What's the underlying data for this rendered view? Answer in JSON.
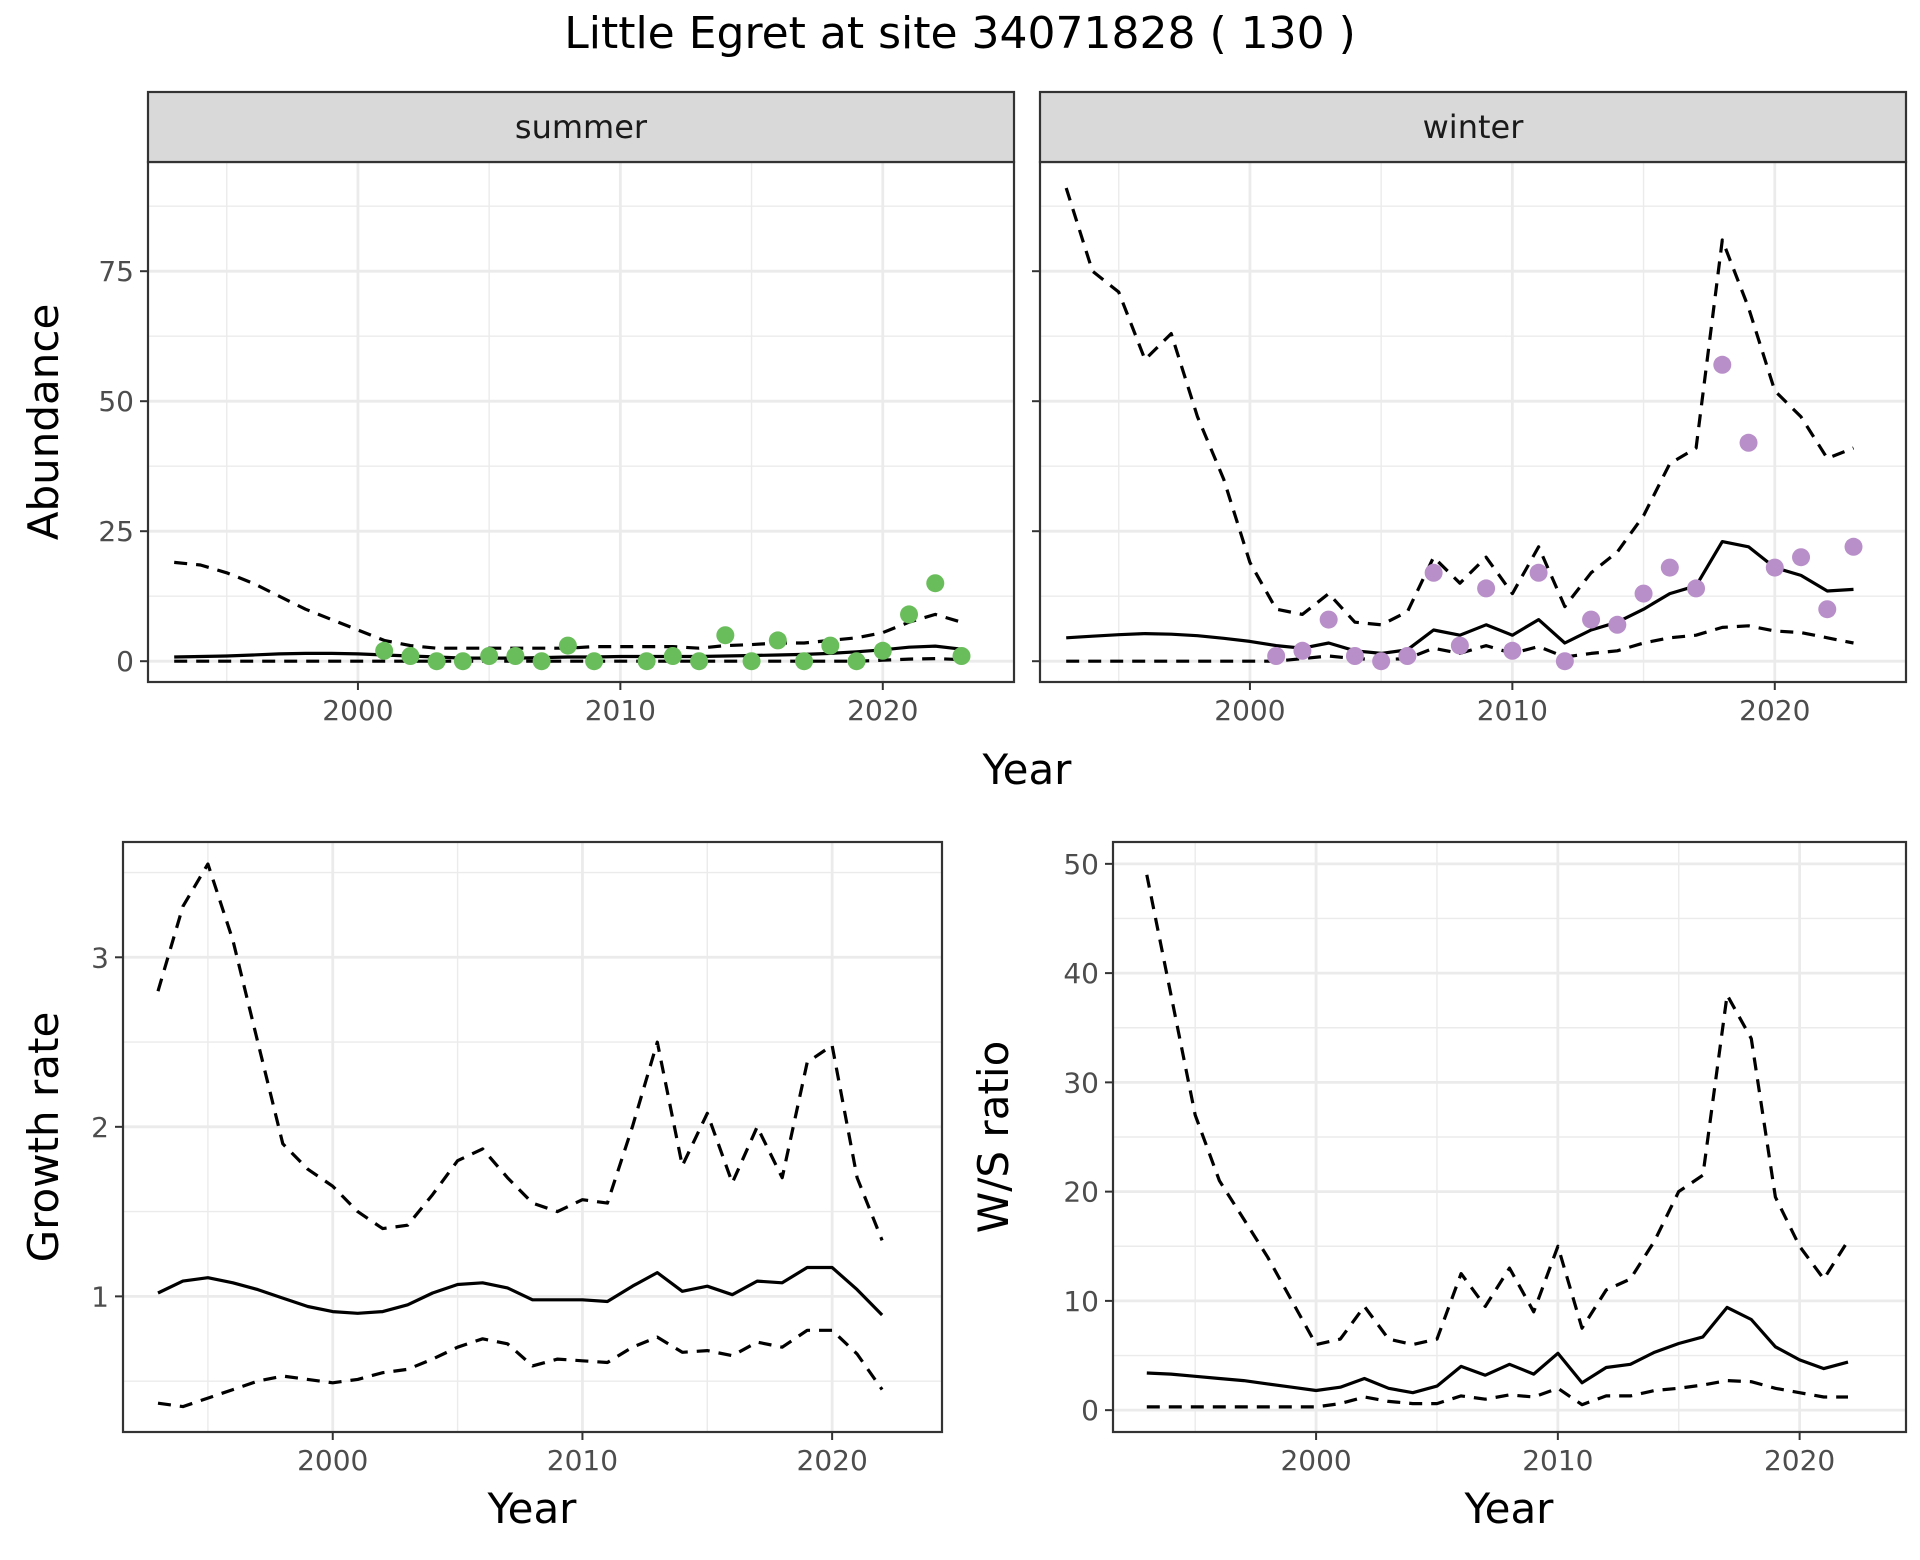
{
  "title": "Little Egret at site 34071828 ( 130 )",
  "colors": {
    "summer_points": "#6abd5b",
    "winter_points": "#b98fc9",
    "line": "#000000",
    "grid": "#ebebeb",
    "strip_bg": "#d9d9d9",
    "panel_border": "#333333"
  },
  "chart_data": [
    {
      "type": "line",
      "panel": "summer",
      "strip": "summer",
      "xlabel": "Year",
      "ylabel": "Abundance",
      "xlim": [
        1992,
        2025
      ],
      "ylim": [
        -4,
        96
      ],
      "xticks": [
        2000,
        2010,
        2020
      ],
      "yticks": [
        0,
        25,
        50,
        75
      ],
      "grid": true,
      "point_color": "#6abd5b",
      "x": [
        1993,
        1994,
        1995,
        1996,
        1997,
        1998,
        1999,
        2000,
        2001,
        2002,
        2003,
        2004,
        2005,
        2006,
        2007,
        2008,
        2009,
        2010,
        2011,
        2012,
        2013,
        2014,
        2015,
        2016,
        2017,
        2018,
        2019,
        2020,
        2021,
        2022,
        2023
      ],
      "series": [
        {
          "style": "solid",
          "values": [
            0.8,
            0.9,
            1.0,
            1.2,
            1.4,
            1.5,
            1.5,
            1.4,
            1.2,
            1.0,
            0.8,
            0.6,
            0.6,
            0.6,
            0.7,
            0.8,
            0.8,
            0.9,
            0.9,
            0.9,
            0.9,
            1.0,
            1.1,
            1.2,
            1.3,
            1.5,
            1.8,
            2.2,
            2.7,
            2.9,
            2.3
          ]
        },
        {
          "style": "dashed",
          "values": [
            19.0,
            18.5,
            17.0,
            15.0,
            12.5,
            10.0,
            8.0,
            6.0,
            4.0,
            3.0,
            2.5,
            2.5,
            2.5,
            2.5,
            2.5,
            2.5,
            2.8,
            2.8,
            2.8,
            2.8,
            2.5,
            3.0,
            3.2,
            3.5,
            3.5,
            4.0,
            4.5,
            5.5,
            7.5,
            9.0,
            7.5
          ]
        },
        {
          "style": "dashed",
          "values": [
            0,
            0,
            0,
            0,
            0,
            0,
            0,
            0,
            0,
            0,
            0,
            0,
            0,
            0,
            0,
            0,
            0,
            0,
            0,
            0,
            0,
            0,
            0,
            0,
            0,
            0,
            0,
            0.2,
            0.4,
            0.5,
            0.3
          ]
        }
      ],
      "points": {
        "x": [
          2001,
          2002,
          2003,
          2004,
          2005,
          2006,
          2007,
          2008,
          2009,
          2011,
          2012,
          2013,
          2014,
          2015,
          2016,
          2017,
          2018,
          2019,
          2020,
          2021,
          2022,
          2023
        ],
        "y": [
          2,
          1,
          0,
          0,
          1,
          1,
          0,
          3,
          0,
          0,
          1,
          0,
          5,
          0,
          4,
          0,
          3,
          0,
          2,
          9,
          15,
          1
        ]
      }
    },
    {
      "type": "line",
      "panel": "winter",
      "strip": "winter",
      "xlabel": "Year",
      "ylabel": "",
      "xlim": [
        1992,
        2025
      ],
      "ylim": [
        -4,
        96
      ],
      "xticks": [
        2000,
        2010,
        2020
      ],
      "yticks": [
        0,
        25,
        50,
        75
      ],
      "grid": true,
      "point_color": "#b98fc9",
      "x": [
        1993,
        1994,
        1995,
        1996,
        1997,
        1998,
        1999,
        2000,
        2001,
        2002,
        2003,
        2004,
        2005,
        2006,
        2007,
        2008,
        2009,
        2010,
        2011,
        2012,
        2013,
        2014,
        2015,
        2016,
        2017,
        2018,
        2019,
        2020,
        2021,
        2022,
        2023
      ],
      "series": [
        {
          "style": "solid",
          "values": [
            4.5,
            4.8,
            5.1,
            5.3,
            5.2,
            4.9,
            4.4,
            3.8,
            3.0,
            2.5,
            3.5,
            2.0,
            1.5,
            2.2,
            6.0,
            5.0,
            7.0,
            5.0,
            8.0,
            3.5,
            6.0,
            7.5,
            10.0,
            13.0,
            14.5,
            23.0,
            22.0,
            18.0,
            16.5,
            13.5,
            13.8
          ]
        },
        {
          "style": "dashed",
          "values": [
            91.0,
            75.0,
            71.0,
            58.0,
            63.0,
            47.0,
            35.0,
            19.0,
            10.0,
            9.0,
            13.0,
            7.5,
            7.0,
            9.5,
            20.0,
            15.0,
            20.0,
            13.0,
            22.0,
            10.5,
            17.0,
            21.0,
            28.0,
            38.0,
            41.0,
            81.0,
            68.0,
            52.0,
            47.0,
            39.0,
            41.0
          ]
        },
        {
          "style": "dashed",
          "values": [
            0,
            0,
            0,
            0,
            0,
            0,
            0,
            0,
            0,
            0.5,
            1.0,
            0.5,
            0.3,
            0.5,
            2.5,
            1.5,
            3.0,
            1.5,
            2.8,
            0.8,
            1.5,
            2.0,
            3.5,
            4.5,
            5.0,
            6.5,
            6.8,
            5.8,
            5.5,
            4.5,
            3.5
          ]
        }
      ],
      "points": {
        "x": [
          2001,
          2002,
          2003,
          2004,
          2005,
          2006,
          2007,
          2008,
          2009,
          2010,
          2011,
          2012,
          2013,
          2014,
          2015,
          2016,
          2017,
          2018,
          2019,
          2020,
          2021,
          2022,
          2023
        ],
        "y": [
          1,
          2,
          8,
          1,
          0,
          1,
          17,
          3,
          14,
          2,
          17,
          0,
          8,
          7,
          13,
          18,
          14,
          57,
          42,
          18,
          20,
          10,
          22
        ]
      }
    },
    {
      "type": "line",
      "panel": "growth",
      "xlabel": "Year",
      "ylabel": "Growth rate",
      "xlim": [
        1991.6,
        2024.4
      ],
      "ylim": [
        0.2,
        3.68
      ],
      "xticks": [
        2000,
        2010,
        2020
      ],
      "yticks": [
        1,
        2,
        3
      ],
      "grid": true,
      "x": [
        1993,
        1994,
        1995,
        1996,
        1997,
        1998,
        1999,
        2000,
        2001,
        2002,
        2003,
        2004,
        2005,
        2006,
        2007,
        2008,
        2009,
        2010,
        2011,
        2012,
        2013,
        2014,
        2015,
        2016,
        2017,
        2018,
        2019,
        2020,
        2021,
        2022
      ],
      "series": [
        {
          "style": "solid",
          "values": [
            1.02,
            1.09,
            1.11,
            1.08,
            1.04,
            0.99,
            0.94,
            0.91,
            0.9,
            0.91,
            0.95,
            1.02,
            1.07,
            1.08,
            1.05,
            0.98,
            0.98,
            0.98,
            0.97,
            1.06,
            1.14,
            1.03,
            1.06,
            1.01,
            1.09,
            1.08,
            1.17,
            1.17,
            1.04,
            0.89
          ]
        },
        {
          "style": "dashed",
          "values": [
            2.8,
            3.3,
            3.55,
            3.1,
            2.5,
            1.9,
            1.75,
            1.65,
            1.5,
            1.4,
            1.42,
            1.6,
            1.8,
            1.87,
            1.7,
            1.55,
            1.5,
            1.57,
            1.55,
            2.0,
            2.5,
            1.77,
            2.08,
            1.67,
            2.0,
            1.7,
            2.38,
            2.48,
            1.7,
            1.33
          ]
        },
        {
          "style": "dashed",
          "values": [
            0.37,
            0.35,
            0.4,
            0.45,
            0.5,
            0.53,
            0.51,
            0.49,
            0.51,
            0.55,
            0.57,
            0.63,
            0.7,
            0.75,
            0.72,
            0.59,
            0.63,
            0.62,
            0.61,
            0.7,
            0.76,
            0.67,
            0.68,
            0.65,
            0.73,
            0.7,
            0.8,
            0.8,
            0.66,
            0.45
          ]
        }
      ]
    },
    {
      "type": "line",
      "panel": "ratio",
      "xlabel": "Year",
      "ylabel": "W/S ratio",
      "xlim": [
        1991.6,
        2024.4
      ],
      "ylim": [
        -2,
        52
      ],
      "xticks": [
        2000,
        2010,
        2020
      ],
      "yticks": [
        0,
        10,
        20,
        30,
        40,
        50
      ],
      "grid": true,
      "x": [
        1993,
        1994,
        1995,
        1996,
        1997,
        1998,
        1999,
        2000,
        2001,
        2002,
        2003,
        2004,
        2005,
        2006,
        2007,
        2008,
        2009,
        2010,
        2011,
        2012,
        2013,
        2014,
        2015,
        2016,
        2017,
        2018,
        2019,
        2020,
        2021,
        2022
      ],
      "series": [
        {
          "style": "solid",
          "values": [
            3.4,
            3.3,
            3.1,
            2.9,
            2.7,
            2.4,
            2.1,
            1.8,
            2.1,
            2.9,
            2.0,
            1.6,
            2.2,
            4.0,
            3.2,
            4.2,
            3.3,
            5.2,
            2.5,
            3.9,
            4.2,
            5.3,
            6.1,
            6.7,
            9.4,
            8.3,
            5.8,
            4.6,
            3.8,
            4.4
          ]
        },
        {
          "style": "dashed",
          "values": [
            49.0,
            38.0,
            27.0,
            21.0,
            17.5,
            14.0,
            10.0,
            6.0,
            6.5,
            9.5,
            6.5,
            6.0,
            6.5,
            12.5,
            9.5,
            13.0,
            9.0,
            15.0,
            7.5,
            11.0,
            12.0,
            15.5,
            20.0,
            21.5,
            38.0,
            34.0,
            19.5,
            15.0,
            12.0,
            15.5
          ]
        },
        {
          "style": "dashed",
          "values": [
            0.3,
            0.3,
            0.3,
            0.3,
            0.3,
            0.3,
            0.3,
            0.3,
            0.6,
            1.2,
            0.8,
            0.6,
            0.6,
            1.3,
            1.0,
            1.4,
            1.2,
            2.0,
            0.5,
            1.3,
            1.3,
            1.8,
            2.0,
            2.3,
            2.7,
            2.6,
            2.0,
            1.6,
            1.2,
            1.2
          ]
        }
      ]
    }
  ]
}
